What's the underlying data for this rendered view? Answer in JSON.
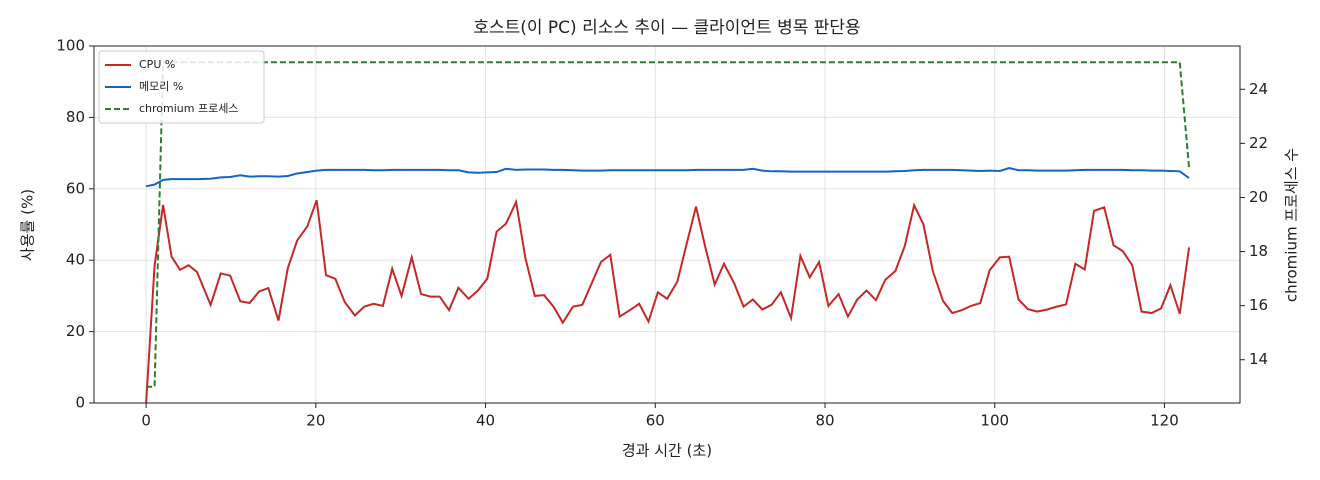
{
  "chart_data": {
    "type": "line",
    "title": "호스트(이 PC) 리소스 추이 — 클라이언트 병목 판단용",
    "x_label": "경과 시간 (초)",
    "y_label": "사용률 (%)",
    "y2_label": "chromium 프로세스 수",
    "x": [
      0,
      1,
      2,
      3,
      4,
      5,
      6,
      7.6,
      8.8,
      9.9,
      11.1,
      12.2,
      13.3,
      14.4,
      15.6,
      16.7,
      17.8,
      19,
      20.1,
      21.2,
      22.3,
      23.4,
      24.6,
      25.7,
      26.8,
      27.9,
      29,
      30.1,
      31.3,
      32.4,
      33.5,
      34.6,
      35.7,
      36.8,
      38,
      39.1,
      40.2,
      41.3,
      42.4,
      43.6,
      44.7,
      45.8,
      46.9,
      48,
      49.1,
      50.3,
      51.4,
      52.5,
      53.6,
      54.7,
      55.8,
      57,
      58.1,
      59.2,
      60.3,
      61.4,
      62.6,
      63.7,
      64.8,
      65.9,
      67,
      68.1,
      69.3,
      70.4,
      71.5,
      72.6,
      73.7,
      74.8,
      76,
      77.1,
      78.2,
      79.3,
      80.4,
      81.6,
      82.7,
      83.8,
      84.9,
      86,
      87.1,
      88.3,
      89.4,
      90.5,
      91.6,
      92.7,
      93.9,
      95,
      96.1,
      97.2,
      98.3,
      99.4,
      100.6,
      101.7,
      102.8,
      103.9,
      105,
      106.2,
      107.3,
      108.4,
      109.5,
      110.6,
      111.7,
      112.9,
      114,
      115.1,
      116.2,
      117.3,
      118.5,
      119.6,
      120.7,
      121.8,
      122.9
    ],
    "series": [
      {
        "name": "CPU %",
        "color": "#c62828",
        "linestyle": "solid",
        "values": [
          0,
          38.5,
          55.5,
          41,
          37.3,
          38.6,
          36.7,
          27.5,
          36.3,
          35.7,
          28.5,
          28,
          31.2,
          32.2,
          23.1,
          37.8,
          45.5,
          49.5,
          56.8,
          35.8,
          34.8,
          28.3,
          24.5,
          27,
          27.8,
          27.2,
          37.6,
          30,
          40.8,
          30.5,
          29.8,
          29.8,
          26,
          32.3,
          29.2,
          31.5,
          34.8,
          48,
          50.2,
          56.3,
          40.5,
          30,
          30.2,
          27,
          22.5,
          27,
          27.5,
          33.5,
          39.5,
          41.5,
          24.2,
          26,
          27.8,
          22.8,
          31,
          29.2,
          34,
          44.6,
          55,
          43.6,
          33.2,
          39,
          33.5,
          27,
          29,
          26.2,
          27.5,
          31,
          23.8,
          41.2,
          35.2,
          39.5,
          27.2,
          30.5,
          24.2,
          29,
          31.5,
          28.8,
          34.5,
          37,
          44,
          55.4,
          50,
          37,
          28.6,
          25.2,
          26,
          27.2,
          28,
          37.2,
          40.8,
          41,
          29,
          26.3,
          25.6,
          26.2,
          27,
          27.6,
          39,
          37.4,
          53.8,
          54.8,
          44.2,
          42.5,
          38.6,
          25.6,
          25.2,
          26.5,
          33,
          25,
          43.6
        ]
      },
      {
        "name": "메모리 %",
        "color": "#1565c0",
        "linestyle": "solid",
        "values": [
          60.7,
          61.2,
          62.5,
          62.7,
          62.7,
          62.7,
          62.7,
          62.8,
          63.2,
          63.3,
          63.8,
          63.4,
          63.5,
          63.5,
          63.4,
          63.6,
          64.3,
          64.7,
          65.1,
          65.3,
          65.3,
          65.3,
          65.3,
          65.3,
          65.2,
          65.2,
          65.3,
          65.3,
          65.3,
          65.3,
          65.3,
          65.3,
          65.2,
          65.2,
          64.6,
          64.5,
          64.6,
          64.7,
          65.6,
          65.3,
          65.4,
          65.4,
          65.4,
          65.3,
          65.3,
          65.2,
          65.1,
          65.1,
          65.1,
          65.2,
          65.2,
          65.2,
          65.2,
          65.2,
          65.2,
          65.2,
          65.2,
          65.2,
          65.3,
          65.3,
          65.3,
          65.3,
          65.3,
          65.3,
          65.6,
          65.1,
          64.9,
          64.9,
          64.8,
          64.8,
          64.8,
          64.8,
          64.8,
          64.8,
          64.8,
          64.8,
          64.8,
          64.8,
          64.8,
          64.9,
          65,
          65.2,
          65.3,
          65.3,
          65.3,
          65.3,
          65.2,
          65.1,
          65,
          65.1,
          65,
          65.8,
          65.2,
          65.2,
          65.1,
          65.1,
          65.1,
          65.1,
          65.2,
          65.3,
          65.3,
          65.3,
          65.3,
          65.3,
          65.2,
          65.2,
          65.1,
          65.1,
          65,
          64.9,
          63
        ]
      },
      {
        "name": "chromium 프로세스",
        "color": "#2e7d32",
        "linestyle": "dashed",
        "axis": "y2",
        "values": [
          13,
          13,
          25,
          25,
          25,
          25,
          25,
          25,
          25,
          25,
          25,
          25,
          25,
          25,
          25,
          25,
          25,
          25,
          25,
          25,
          25,
          25,
          25,
          25,
          25,
          25,
          25,
          25,
          25,
          25,
          25,
          25,
          25,
          25,
          25,
          25,
          25,
          25,
          25,
          25,
          25,
          25,
          25,
          25,
          25,
          25,
          25,
          25,
          25,
          25,
          25,
          25,
          25,
          25,
          25,
          25,
          25,
          25,
          25,
          25,
          25,
          25,
          25,
          25,
          25,
          25,
          25,
          25,
          25,
          25,
          25,
          25,
          25,
          25,
          25,
          25,
          25,
          25,
          25,
          25,
          25,
          25,
          25,
          25,
          25,
          25,
          25,
          25,
          25,
          25,
          25,
          25,
          25,
          25,
          25,
          25,
          25,
          25,
          25,
          25,
          25,
          25,
          25,
          25,
          25,
          25,
          25,
          25,
          25,
          25,
          21.1
        ]
      }
    ],
    "xlim": [
      -6.14,
      128.9
    ],
    "xticks": [
      0,
      20,
      40,
      60,
      80,
      100,
      120
    ],
    "ylim": [
      0,
      100
    ],
    "yticks": [
      0,
      20,
      40,
      60,
      80,
      100
    ],
    "y2lim": [
      12.4,
      25.6
    ],
    "y2ticks": [
      14,
      16,
      18,
      20,
      22,
      24
    ],
    "grid": true,
    "legend": "upper left"
  }
}
